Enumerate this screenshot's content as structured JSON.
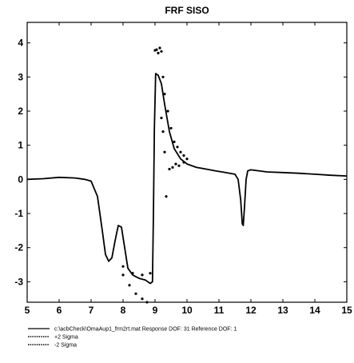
{
  "chart_data": {
    "type": "line",
    "title": "FRF SISO",
    "xlabel": "",
    "ylabel": "",
    "xlim": [
      5,
      15
    ],
    "ylim": [
      -3.6,
      4.6
    ],
    "x_ticks": [
      "5",
      "6",
      "7",
      "8",
      "9",
      "10",
      "11",
      "12",
      "13",
      "14",
      "15"
    ],
    "y_ticks": [
      "4",
      "3",
      "2",
      "1",
      "0",
      "-1",
      "-2",
      "-3"
    ],
    "grid": false,
    "legend_placement": "below",
    "series": [
      {
        "name": "c:\\acbCheck\\OmaAup1_frm2rt.mat   Response DOF: 31   Reference DOF: 1",
        "style": "solid",
        "points": [
          [
            5,
            0.0
          ],
          [
            5.5,
            0.02
          ],
          [
            6,
            0.06
          ],
          [
            6.5,
            0.04
          ],
          [
            6.8,
            0.0
          ],
          [
            7.0,
            -0.05
          ],
          [
            7.2,
            -0.5
          ],
          [
            7.35,
            -1.5
          ],
          [
            7.45,
            -2.2
          ],
          [
            7.55,
            -2.4
          ],
          [
            7.65,
            -2.3
          ],
          [
            7.75,
            -1.8
          ],
          [
            7.85,
            -1.35
          ],
          [
            7.95,
            -1.4
          ],
          [
            8.05,
            -2.0
          ],
          [
            8.15,
            -2.6
          ],
          [
            8.3,
            -2.8
          ],
          [
            8.5,
            -2.9
          ],
          [
            8.7,
            -2.95
          ],
          [
            8.85,
            -3.05
          ],
          [
            8.92,
            -3.0
          ],
          [
            8.95,
            -1.0
          ],
          [
            8.98,
            1.5
          ],
          [
            9.02,
            3.1
          ],
          [
            9.1,
            3.05
          ],
          [
            9.2,
            2.8
          ],
          [
            9.3,
            2.2
          ],
          [
            9.45,
            1.4
          ],
          [
            9.6,
            0.9
          ],
          [
            9.8,
            0.6
          ],
          [
            10.0,
            0.45
          ],
          [
            10.3,
            0.35
          ],
          [
            10.6,
            0.3
          ],
          [
            10.9,
            0.25
          ],
          [
            11.2,
            0.2
          ],
          [
            11.5,
            0.15
          ],
          [
            11.6,
            0.0
          ],
          [
            11.68,
            -0.6
          ],
          [
            11.73,
            -1.3
          ],
          [
            11.76,
            -1.35
          ],
          [
            11.8,
            -0.8
          ],
          [
            11.85,
            0.0
          ],
          [
            11.9,
            0.25
          ],
          [
            12.0,
            0.28
          ],
          [
            12.5,
            0.22
          ],
          [
            13,
            0.2
          ],
          [
            13.5,
            0.18
          ],
          [
            14,
            0.15
          ],
          [
            14.5,
            0.12
          ],
          [
            15,
            0.1
          ]
        ]
      },
      {
        "name": "+2 Sigma",
        "style": "dotted",
        "points": [
          [
            8.0,
            -2.55
          ],
          [
            8.3,
            -2.75
          ],
          [
            8.6,
            -2.8
          ],
          [
            8.85,
            -2.75
          ],
          [
            9.0,
            3.78
          ],
          [
            9.05,
            3.8
          ],
          [
            9.1,
            3.7
          ],
          [
            9.15,
            3.85
          ],
          [
            9.2,
            3.75
          ],
          [
            9.25,
            3.0
          ],
          [
            9.3,
            2.5
          ],
          [
            9.4,
            2.0
          ],
          [
            9.5,
            1.5
          ],
          [
            9.6,
            1.1
          ],
          [
            9.7,
            0.95
          ],
          [
            9.8,
            0.8
          ],
          [
            9.9,
            0.7
          ],
          [
            10.0,
            0.6
          ]
        ]
      },
      {
        "name": "-2 Sigma",
        "style": "dotted",
        "points": [
          [
            8.0,
            -2.8
          ],
          [
            8.2,
            -3.1
          ],
          [
            8.4,
            -3.35
          ],
          [
            8.6,
            -3.5
          ],
          [
            8.75,
            -3.6
          ],
          [
            9.2,
            1.8
          ],
          [
            9.25,
            1.4
          ],
          [
            9.3,
            0.8
          ],
          [
            9.35,
            -0.5
          ],
          [
            9.45,
            0.3
          ],
          [
            9.55,
            0.35
          ],
          [
            9.65,
            0.45
          ],
          [
            9.75,
            0.4
          ],
          [
            9.9,
            0.5
          ]
        ]
      }
    ]
  }
}
